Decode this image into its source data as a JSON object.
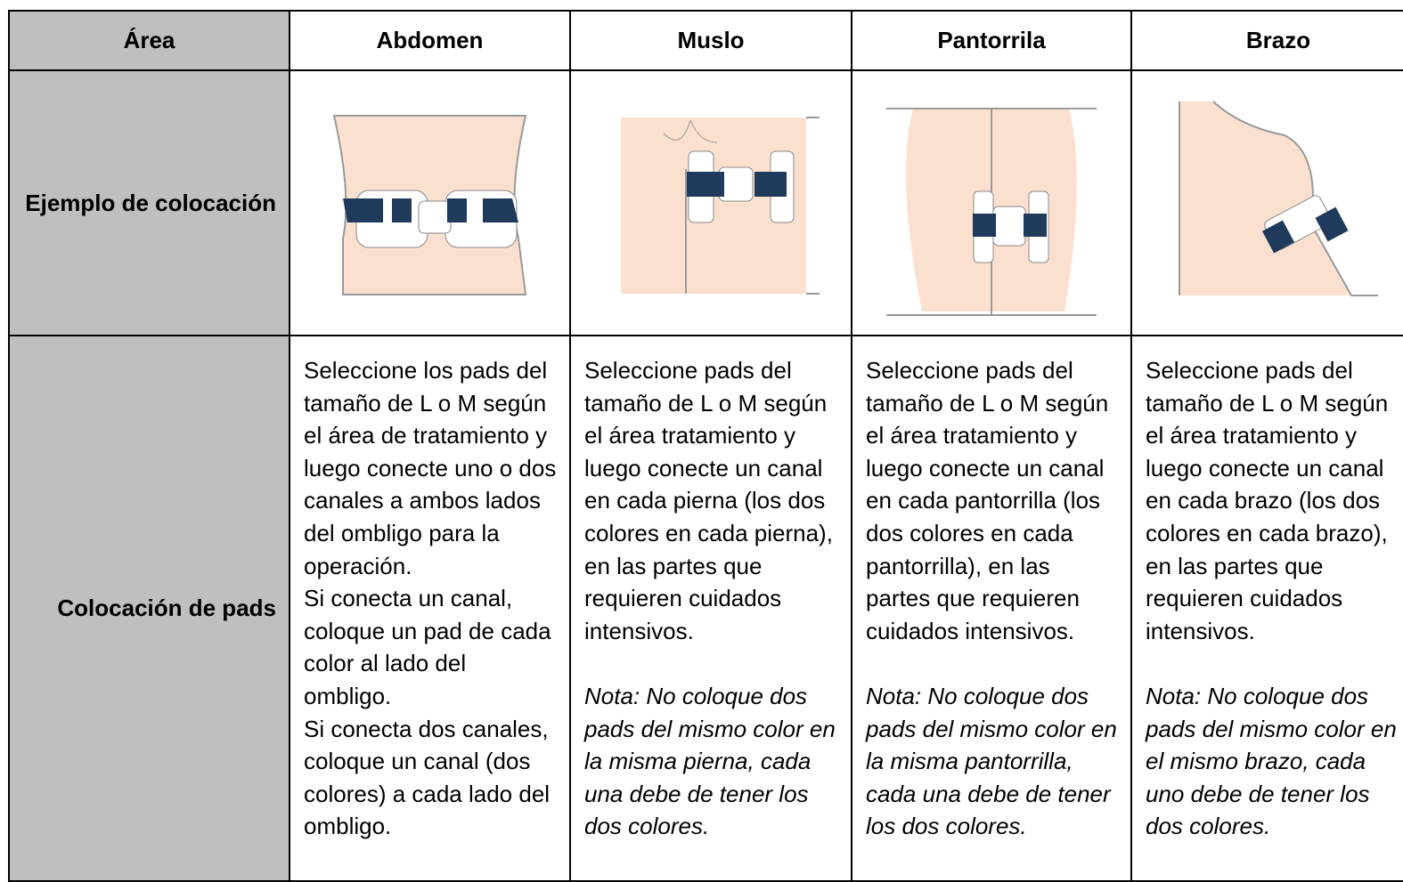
{
  "table": {
    "header": [
      "Área",
      "Abdomen",
      "Muslo",
      "Pantorrila",
      "Brazo"
    ],
    "rows": [
      {
        "label": "Ejemplo de colocación"
      },
      {
        "label": "Colocación de pads",
        "cells": [
          {
            "lines": [
              "Seleccione los pads del",
              "tamaño de L o M según",
              "el área de tratamiento y",
              "luego conecte uno o dos",
              "canales a ambos lados",
              "del ombligo para la",
              "operación.",
              "Si conecta un canal,",
              "coloque un pad de cada",
              "color al lado del",
              "ombligo.",
              "Si conecta dos canales,",
              "coloque un canal (dos",
              "colores) a cada lado del",
              "ombligo."
            ]
          },
          {
            "lines": [
              "Seleccione pads del",
              "tamaño de L o M según",
              "el área tratamiento y",
              "luego conecte un canal",
              "en cada pierna (los dos",
              "colores en cada pierna),",
              "en las partes que",
              "requieren cuidados",
              "intensivos."
            ],
            "note": [
              "Nota: No coloque dos",
              "pads del mismo color en",
              "la misma pierna, cada",
              "una debe de tener los",
              "dos colores."
            ]
          },
          {
            "lines": [
              "Seleccione pads del",
              "tamaño de L o M según",
              "el área tratamiento y",
              "luego conecte un canal",
              "en cada pantorrilla (los",
              "dos colores en cada",
              "pantorrilla), en las",
              "partes que requieren",
              "cuidados intensivos."
            ],
            "note": [
              "Nota: No coloque dos",
              "pads del mismo color en",
              "la misma pantorrilla,",
              "cada una debe de tener",
              "los dos colores."
            ]
          },
          {
            "lines": [
              "Seleccione pads del",
              "tamaño de L o M según",
              "el área tratamiento y",
              "luego conecte un canal",
              "en cada brazo (los dos",
              "colores en cada brazo),",
              "en las partes que",
              "requieren cuidados",
              "intensivos."
            ],
            "note": [
              "Nota: No coloque dos",
              "pads del mismo color en",
              "el mismo brazo, cada",
              "uno debe de tener los",
              "dos colores."
            ]
          }
        ]
      }
    ]
  }
}
